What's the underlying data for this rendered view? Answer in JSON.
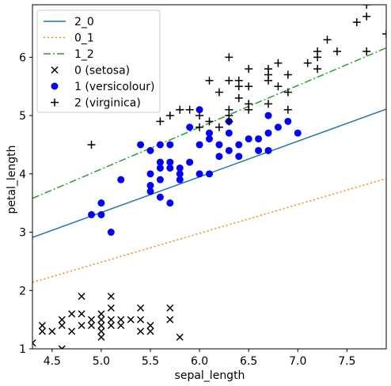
{
  "chart_data": {
    "type": "scatter",
    "xlabel": "sepal_length",
    "ylabel": "petal_length",
    "xlim": [
      4.3,
      7.9
    ],
    "ylim": [
      1.0,
      6.9
    ],
    "x_ticks": [
      4.5,
      5.0,
      5.5,
      6.0,
      6.5,
      7.0,
      7.5
    ],
    "y_ticks": [
      1,
      2,
      3,
      4,
      5,
      6
    ],
    "grid": false,
    "legend_position": "top-left",
    "lines": [
      {
        "name": "2_0",
        "style": "solid",
        "color": "#1f77b4",
        "x": [
          4.3,
          7.9
        ],
        "y": [
          2.91,
          5.11
        ]
      },
      {
        "name": "0_1",
        "style": "dotted",
        "color": "#ff7f0e",
        "x": [
          4.3,
          7.9
        ],
        "y": [
          2.14,
          3.92
        ]
      },
      {
        "name": "1_2",
        "style": "dashdot",
        "color": "#2ca02c",
        "x": [
          4.3,
          7.9
        ],
        "y": [
          3.58,
          6.16
        ]
      }
    ],
    "series": [
      {
        "name": "0 (setosa)",
        "marker": "x",
        "color": "#000000",
        "points": [
          [
            4.3,
            1.1
          ],
          [
            4.4,
            1.3
          ],
          [
            4.4,
            1.4
          ],
          [
            4.5,
            1.3
          ],
          [
            4.6,
            1.0
          ],
          [
            4.6,
            1.4
          ],
          [
            4.6,
            1.5
          ],
          [
            4.7,
            1.3
          ],
          [
            4.7,
            1.6
          ],
          [
            4.8,
            1.4
          ],
          [
            4.8,
            1.6
          ],
          [
            4.8,
            1.9
          ],
          [
            4.9,
            1.4
          ],
          [
            4.9,
            1.5
          ],
          [
            5.0,
            1.2
          ],
          [
            5.0,
            1.3
          ],
          [
            5.0,
            1.4
          ],
          [
            5.0,
            1.5
          ],
          [
            5.0,
            1.6
          ],
          [
            5.1,
            1.4
          ],
          [
            5.1,
            1.5
          ],
          [
            5.1,
            1.7
          ],
          [
            5.1,
            1.9
          ],
          [
            5.2,
            1.4
          ],
          [
            5.2,
            1.5
          ],
          [
            5.3,
            1.5
          ],
          [
            5.4,
            1.3
          ],
          [
            5.4,
            1.5
          ],
          [
            5.4,
            1.7
          ],
          [
            5.5,
            1.3
          ],
          [
            5.5,
            1.4
          ],
          [
            5.7,
            1.5
          ],
          [
            5.7,
            1.7
          ],
          [
            5.8,
            1.2
          ]
        ]
      },
      {
        "name": "1 (versicolour)",
        "marker": "o",
        "color": "#0000ff",
        "points": [
          [
            4.9,
            3.3
          ],
          [
            5.0,
            3.3
          ],
          [
            5.0,
            3.5
          ],
          [
            5.1,
            3.0
          ],
          [
            5.2,
            3.9
          ],
          [
            5.4,
            4.5
          ],
          [
            5.5,
            3.7
          ],
          [
            5.5,
            3.8
          ],
          [
            5.5,
            4.0
          ],
          [
            5.5,
            4.4
          ],
          [
            5.6,
            3.6
          ],
          [
            5.6,
            3.9
          ],
          [
            5.6,
            4.1
          ],
          [
            5.6,
            4.2
          ],
          [
            5.6,
            4.5
          ],
          [
            5.7,
            3.5
          ],
          [
            5.7,
            4.1
          ],
          [
            5.7,
            4.2
          ],
          [
            5.7,
            4.5
          ],
          [
            5.8,
            3.9
          ],
          [
            5.8,
            4.0
          ],
          [
            5.8,
            4.1
          ],
          [
            5.9,
            4.2
          ],
          [
            5.9,
            4.8
          ],
          [
            6.0,
            4.0
          ],
          [
            6.0,
            4.5
          ],
          [
            6.0,
            5.1
          ],
          [
            6.1,
            4.0
          ],
          [
            6.1,
            4.6
          ],
          [
            6.1,
            4.7
          ],
          [
            6.2,
            4.3
          ],
          [
            6.2,
            4.5
          ],
          [
            6.3,
            4.4
          ],
          [
            6.3,
            4.7
          ],
          [
            6.3,
            4.9
          ],
          [
            6.4,
            4.3
          ],
          [
            6.4,
            4.5
          ],
          [
            6.5,
            4.6
          ],
          [
            6.6,
            4.4
          ],
          [
            6.6,
            4.6
          ],
          [
            6.7,
            4.4
          ],
          [
            6.7,
            4.7
          ],
          [
            6.7,
            5.0
          ],
          [
            6.8,
            4.8
          ],
          [
            6.9,
            4.9
          ],
          [
            7.0,
            4.7
          ]
        ]
      },
      {
        "name": "2 (virginica)",
        "marker": "+",
        "color": "#000000",
        "points": [
          [
            4.9,
            4.5
          ],
          [
            5.6,
            4.9
          ],
          [
            5.7,
            5.0
          ],
          [
            5.8,
            5.1
          ],
          [
            5.8,
            5.1
          ],
          [
            5.9,
            5.1
          ],
          [
            6.0,
            4.8
          ],
          [
            6.0,
            5.0
          ],
          [
            6.1,
            4.9
          ],
          [
            6.1,
            5.6
          ],
          [
            6.2,
            4.8
          ],
          [
            6.2,
            5.4
          ],
          [
            6.3,
            4.9
          ],
          [
            6.3,
            5.0
          ],
          [
            6.3,
            5.1
          ],
          [
            6.3,
            5.6
          ],
          [
            6.3,
            6.0
          ],
          [
            6.4,
            5.3
          ],
          [
            6.4,
            5.5
          ],
          [
            6.4,
            5.6
          ],
          [
            6.5,
            5.1
          ],
          [
            6.5,
            5.2
          ],
          [
            6.5,
            5.5
          ],
          [
            6.5,
            5.8
          ],
          [
            6.7,
            5.2
          ],
          [
            6.7,
            5.6
          ],
          [
            6.7,
            5.7
          ],
          [
            6.7,
            5.8
          ],
          [
            6.8,
            5.5
          ],
          [
            6.8,
            5.9
          ],
          [
            6.9,
            5.1
          ],
          [
            6.9,
            5.4
          ],
          [
            6.9,
            5.7
          ],
          [
            7.1,
            5.9
          ],
          [
            7.2,
            5.8
          ],
          [
            7.2,
            6.0
          ],
          [
            7.2,
            6.1
          ],
          [
            7.3,
            6.3
          ],
          [
            7.4,
            6.1
          ],
          [
            7.6,
            6.6
          ],
          [
            7.7,
            6.1
          ],
          [
            7.7,
            6.7
          ],
          [
            7.7,
            6.9
          ],
          [
            7.9,
            6.4
          ]
        ]
      }
    ]
  }
}
